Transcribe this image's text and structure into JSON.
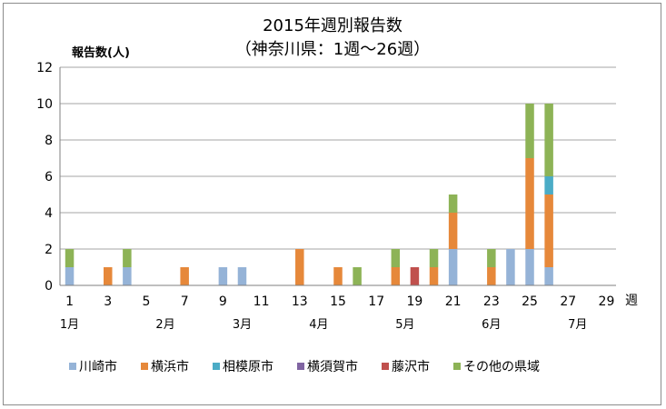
{
  "chart_data": {
    "type": "bar",
    "stacked": true,
    "title_line1": "2015年週別報告数",
    "title_line2": "（神奈川県：1週～26週）",
    "ylabel": "報告数(人)",
    "xlabel": "週",
    "ylim": [
      0,
      12
    ],
    "yticks": [
      0,
      2,
      4,
      6,
      8,
      10,
      12
    ],
    "grid": true,
    "legend_position": "bottom",
    "x": [
      1,
      2,
      3,
      4,
      5,
      6,
      7,
      8,
      9,
      10,
      11,
      12,
      13,
      14,
      15,
      16,
      17,
      18,
      19,
      20,
      21,
      22,
      23,
      24,
      25,
      26,
      27,
      28,
      29
    ],
    "xtick_labels": [
      "1",
      "3",
      "5",
      "7",
      "9",
      "11",
      "13",
      "15",
      "17",
      "19",
      "21",
      "23",
      "25",
      "27",
      "29"
    ],
    "months": [
      {
        "label": "1月",
        "week": 1
      },
      {
        "label": "2月",
        "week": 6
      },
      {
        "label": "3月",
        "week": 10
      },
      {
        "label": "4月",
        "week": 14
      },
      {
        "label": "5月",
        "week": 18.5
      },
      {
        "label": "6月",
        "week": 23
      },
      {
        "label": "7月",
        "week": 27.5
      }
    ],
    "series": [
      {
        "name": "川崎市",
        "color": "#95b3d7",
        "values": [
          1,
          0,
          0,
          1,
          0,
          0,
          0,
          0,
          1,
          1,
          0,
          0,
          0,
          0,
          0,
          0,
          0,
          0,
          0,
          0,
          2,
          0,
          0,
          2,
          2,
          1,
          0,
          0,
          0
        ]
      },
      {
        "name": "横浜市",
        "color": "#e6883a",
        "values": [
          0,
          0,
          1,
          0,
          0,
          0,
          1,
          0,
          0,
          0,
          0,
          0,
          2,
          0,
          1,
          0,
          0,
          1,
          0,
          1,
          2,
          0,
          1,
          0,
          5,
          4,
          0,
          0,
          0
        ]
      },
      {
        "name": "相模原市",
        "color": "#4bacc6",
        "values": [
          0,
          0,
          0,
          0,
          0,
          0,
          0,
          0,
          0,
          0,
          0,
          0,
          0,
          0,
          0,
          0,
          0,
          0,
          0,
          0,
          0,
          0,
          0,
          0,
          0,
          1,
          0,
          0,
          0
        ]
      },
      {
        "name": "横須賀市",
        "color": "#8064a2",
        "values": [
          0,
          0,
          0,
          0,
          0,
          0,
          0,
          0,
          0,
          0,
          0,
          0,
          0,
          0,
          0,
          0,
          0,
          0,
          0,
          0,
          0,
          0,
          0,
          0,
          0,
          0,
          0,
          0,
          0
        ]
      },
      {
        "name": "藤沢市",
        "color": "#c0504d",
        "values": [
          0,
          0,
          0,
          0,
          0,
          0,
          0,
          0,
          0,
          0,
          0,
          0,
          0,
          0,
          0,
          0,
          0,
          0,
          1,
          0,
          0,
          0,
          0,
          0,
          0,
          0,
          0,
          0,
          0
        ]
      },
      {
        "name": "その他の県域",
        "color": "#8db356",
        "values": [
          1,
          0,
          0,
          1,
          0,
          0,
          0,
          0,
          0,
          0,
          0,
          0,
          0,
          0,
          0,
          1,
          0,
          1,
          0,
          1,
          1,
          0,
          1,
          0,
          3,
          4,
          0,
          0,
          0
        ]
      }
    ]
  }
}
